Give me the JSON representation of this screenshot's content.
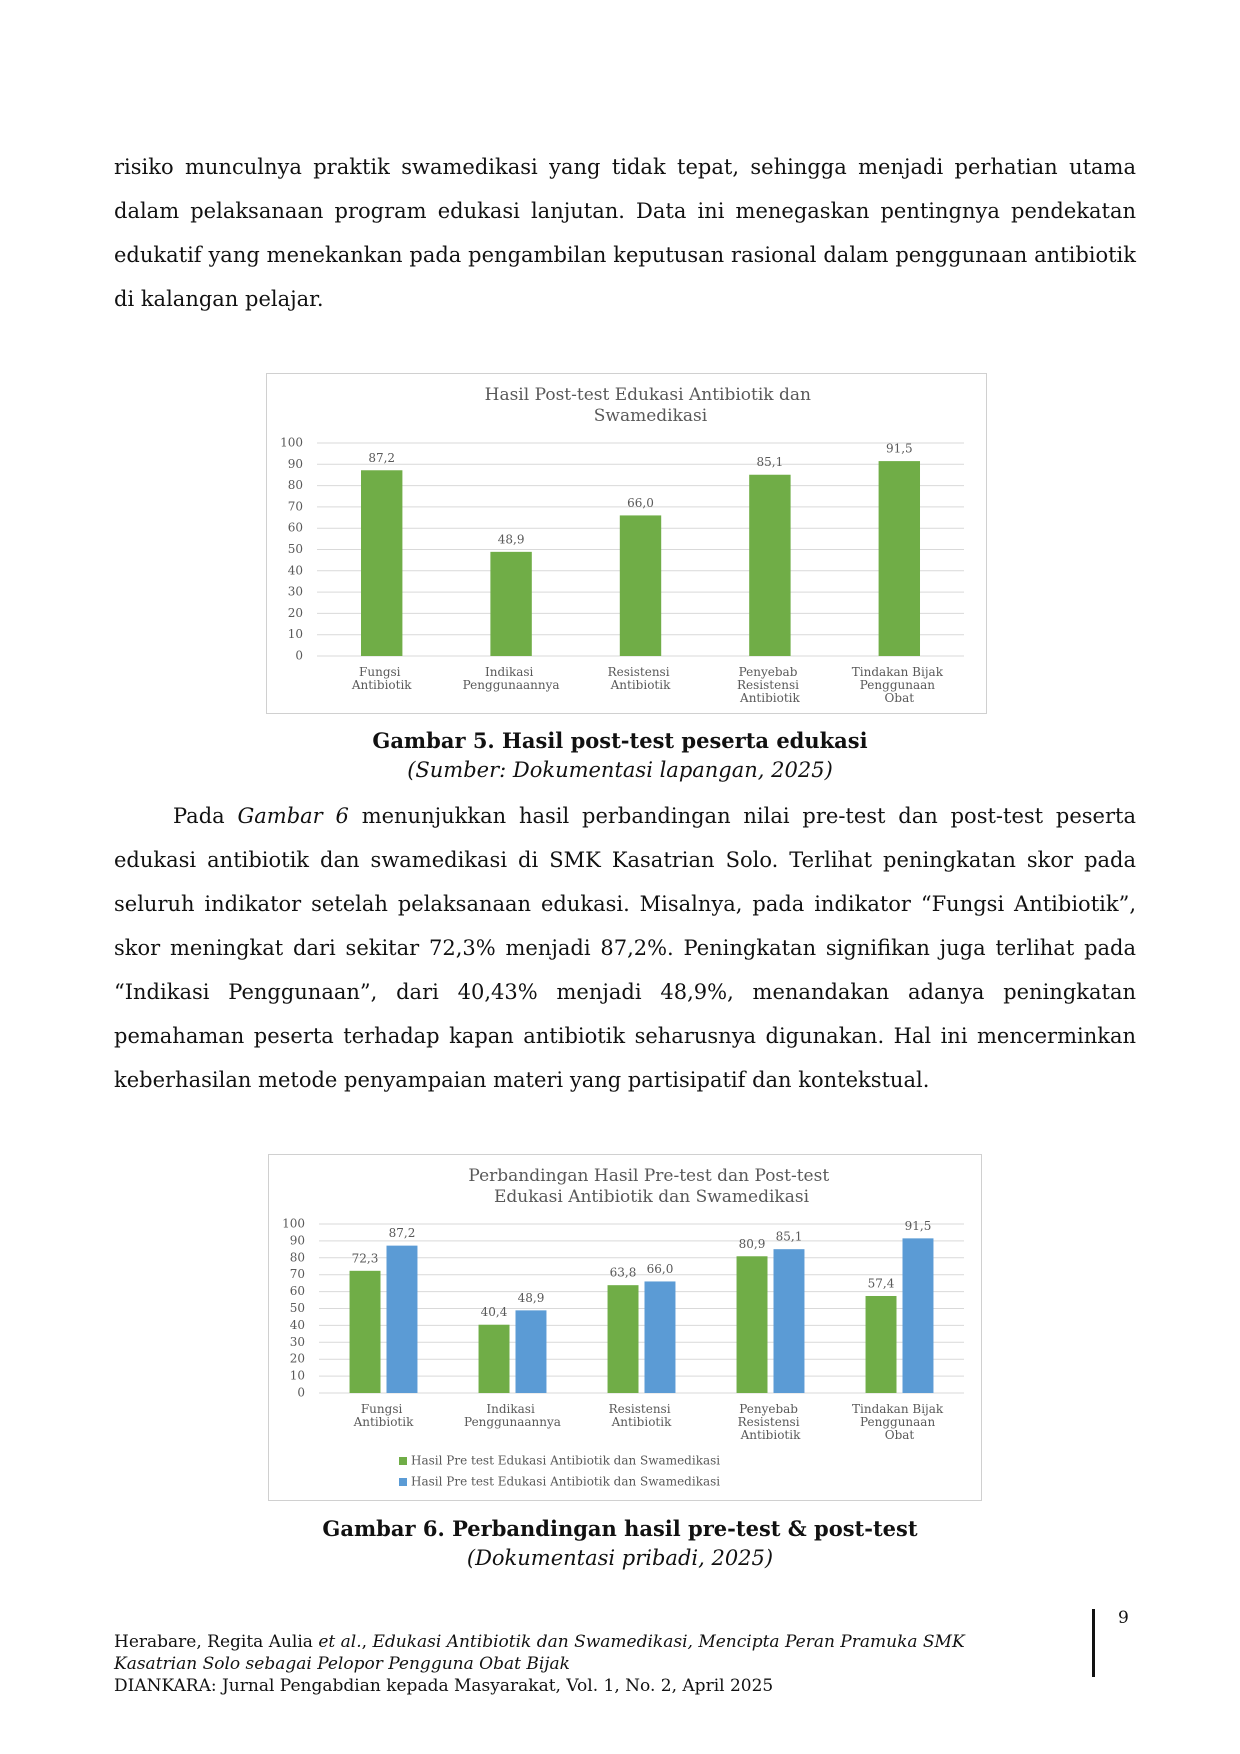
{
  "paragraphs": [
    [
      "risiko munculnya praktik swamedikasi yang tidak tepat, sehingga menjadi perhatian utama dalam pelaksanaan program edukasi lanjutan. Data ini menegaskan pentingnya pendekatan edukatif yang menekankan pada pengambilan keputusan rasional dalam penggunaan antibiotik di kalangan pelajar."
    ],
    [
      "Pada ",
      "Gambar 6",
      " menunjukkan hasil perbandingan nilai pre-test dan post-test peserta edukasi antibiotik dan swamedikasi di SMK Kasatrian Solo. Terlihat peningkatan skor pada seluruh indikator setelah pelaksanaan edukasi. Misalnya, pada indikator “Fungsi Antibiotik”, skor meningkat dari sekitar 72,3% menjadi 87,2%. Peningkatan signifikan juga terlihat pada “Indikasi Penggunaan”, dari 40,43% menjadi 48,9%, menandakan adanya peningkatan pemahaman peserta terhadap kapan antibiotik seharusnya digunakan. Hal ini mencerminkan keberhasilan metode penyampaian materi yang partisipatif dan kontekstual."
    ]
  ],
  "figures": [
    {
      "caption": "Gambar 5. Hasil post-test peserta edukasi",
      "source": "(Sumber: Dokumentasi lapangan, 2025)"
    },
    {
      "caption": "Gambar 6. Perbandingan hasil pre-test & post-test",
      "source": "(Dokumentasi pribadi, 2025)"
    }
  ],
  "chart_data": [
    {
      "type": "bar",
      "title": "Hasil Post-test Edukasi Antibiotik dan Swamedikasi",
      "categories": [
        "Fungsi Antibiotik",
        "Indikasi Penggunaannya",
        "Resistensi Antibiotik",
        "Penyebab Resistensi Antibiotik",
        "Tindakan Bijak Penggunaan Obat"
      ],
      "values": [
        87.2,
        48.9,
        66.0,
        85.1,
        91.5
      ],
      "value_labels": [
        "87,2",
        "48,9",
        "66,0",
        "85,1",
        "91,5"
      ],
      "color": "#70ad47",
      "ylim": [
        0,
        100
      ],
      "yticks": [
        0,
        10,
        20,
        30,
        40,
        50,
        60,
        70,
        80,
        90,
        100
      ],
      "grid": true
    },
    {
      "type": "bar",
      "title": "Perbandingan Hasil Pre-test dan Post-test Edukasi Antibiotik dan Swamedikasi",
      "categories": [
        "Fungsi Antibiotik",
        "Indikasi Penggunaannya",
        "Resistensi Antibiotik",
        "Penyebab Resistensi Antibiotik",
        "Tindakan Bijak Penggunaan Obat"
      ],
      "series": [
        {
          "name": "Hasil Pre test Edukasi Antibiotik dan Swamedikasi",
          "color": "#70ad47",
          "values": [
            72.3,
            40.4,
            63.8,
            80.9,
            57.4
          ],
          "value_labels": [
            "72,3",
            "40,4",
            "63,8",
            "80,9",
            "57,4"
          ]
        },
        {
          "name": "Hasil Pre test Edukasi Antibiotik dan Swamedikasi",
          "color": "#5b9bd5",
          "values": [
            87.2,
            48.9,
            66.0,
            85.1,
            91.5
          ],
          "value_labels": [
            "87,2",
            "48,9",
            "66,0",
            "85,1",
            "91,5"
          ]
        }
      ],
      "ylim": [
        0,
        100
      ],
      "yticks": [
        0,
        10,
        20,
        30,
        40,
        50,
        60,
        70,
        80,
        90,
        100
      ],
      "grid": true,
      "legend": "bottom"
    }
  ],
  "footer": {
    "citation": [
      "Herabare, Regita Aulia ",
      "et al.",
      ", ",
      "Edukasi Antibiotik dan Swamedikasi, Mencipta Peran Pramuka SMK Kasatrian Solo sebagai Pelopor Pengguna Obat Bijak"
    ],
    "journal": "DIANKARA: Jurnal Pengabdian kepada Masyarakat, Vol. 1, No. 2, April 2025",
    "page": "9"
  }
}
